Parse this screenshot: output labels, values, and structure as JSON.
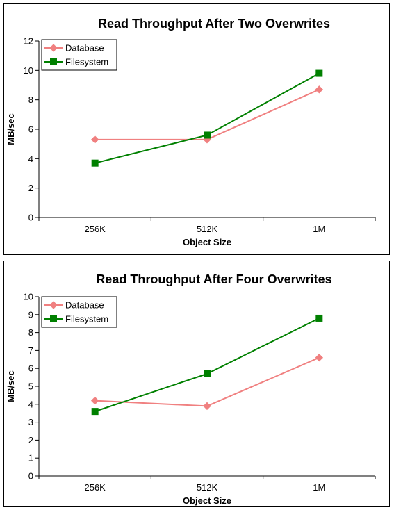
{
  "chart_data": [
    {
      "type": "line",
      "title": "Read Throughput After Two Overwrites",
      "xlabel": "Object Size",
      "ylabel": "MB/sec",
      "categories": [
        "256K",
        "512K",
        "1M"
      ],
      "ylim": [
        0,
        12
      ],
      "yticks": [
        0,
        2,
        4,
        6,
        8,
        10,
        12
      ],
      "grid": false,
      "legend_position": "top-left",
      "series": [
        {
          "name": "Database",
          "values": [
            5.3,
            5.3,
            8.7
          ],
          "color": "#F08080",
          "marker": "diamond"
        },
        {
          "name": "Filesystem",
          "values": [
            3.7,
            5.6,
            9.8
          ],
          "color": "#008000",
          "marker": "square"
        }
      ]
    },
    {
      "type": "line",
      "title": "Read Throughput After Four Overwrites",
      "xlabel": "Object Size",
      "ylabel": "MB/sec",
      "categories": [
        "256K",
        "512K",
        "1M"
      ],
      "ylim": [
        0,
        10
      ],
      "yticks": [
        0,
        1,
        2,
        3,
        4,
        5,
        6,
        7,
        8,
        9,
        10
      ],
      "grid": false,
      "legend_position": "top-left",
      "series": [
        {
          "name": "Database",
          "values": [
            4.2,
            3.9,
            6.6
          ],
          "color": "#F08080",
          "marker": "diamond"
        },
        {
          "name": "Filesystem",
          "values": [
            3.6,
            5.7,
            8.8
          ],
          "color": "#008000",
          "marker": "square"
        }
      ]
    }
  ]
}
